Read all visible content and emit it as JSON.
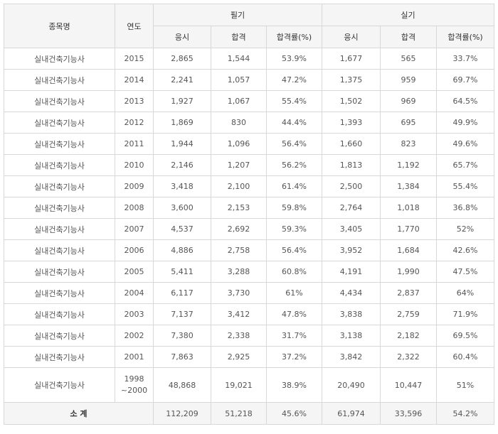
{
  "headers": {
    "name": "종목명",
    "year": "연도",
    "written": "필기",
    "practical": "실기",
    "apply": "응시",
    "pass": "합격",
    "rate": "합격률(%)"
  },
  "rows": [
    {
      "name": "실내건축기능사",
      "year": "2015",
      "w_apply": "2,865",
      "w_pass": "1,544",
      "w_rate": "53.9%",
      "p_apply": "1,677",
      "p_pass": "565",
      "p_rate": "33.7%"
    },
    {
      "name": "실내건축기능사",
      "year": "2014",
      "w_apply": "2,241",
      "w_pass": "1,057",
      "w_rate": "47.2%",
      "p_apply": "1,375",
      "p_pass": "959",
      "p_rate": "69.7%"
    },
    {
      "name": "실내건축기능사",
      "year": "2013",
      "w_apply": "1,927",
      "w_pass": "1,067",
      "w_rate": "55.4%",
      "p_apply": "1,502",
      "p_pass": "969",
      "p_rate": "64.5%"
    },
    {
      "name": "실내건축기능사",
      "year": "2012",
      "w_apply": "1,869",
      "w_pass": "830",
      "w_rate": "44.4%",
      "p_apply": "1,393",
      "p_pass": "695",
      "p_rate": "49.9%"
    },
    {
      "name": "실내건축기능사",
      "year": "2011",
      "w_apply": "1,944",
      "w_pass": "1,096",
      "w_rate": "56.4%",
      "p_apply": "1,660",
      "p_pass": "823",
      "p_rate": "49.6%"
    },
    {
      "name": "실내건축기능사",
      "year": "2010",
      "w_apply": "2,146",
      "w_pass": "1,207",
      "w_rate": "56.2%",
      "p_apply": "1,813",
      "p_pass": "1,192",
      "p_rate": "65.7%"
    },
    {
      "name": "실내건축기능사",
      "year": "2009",
      "w_apply": "3,418",
      "w_pass": "2,100",
      "w_rate": "61.4%",
      "p_apply": "2,500",
      "p_pass": "1,384",
      "p_rate": "55.4%"
    },
    {
      "name": "실내건축기능사",
      "year": "2008",
      "w_apply": "3,600",
      "w_pass": "2,153",
      "w_rate": "59.8%",
      "p_apply": "2,764",
      "p_pass": "1,018",
      "p_rate": "36.8%"
    },
    {
      "name": "실내건축기능사",
      "year": "2007",
      "w_apply": "4,537",
      "w_pass": "2,692",
      "w_rate": "59.3%",
      "p_apply": "3,405",
      "p_pass": "1,770",
      "p_rate": "52%"
    },
    {
      "name": "실내건축기능사",
      "year": "2006",
      "w_apply": "4,886",
      "w_pass": "2,758",
      "w_rate": "56.4%",
      "p_apply": "3,952",
      "p_pass": "1,684",
      "p_rate": "42.6%"
    },
    {
      "name": "실내건축기능사",
      "year": "2005",
      "w_apply": "5,411",
      "w_pass": "3,288",
      "w_rate": "60.8%",
      "p_apply": "4,191",
      "p_pass": "1,990",
      "p_rate": "47.5%"
    },
    {
      "name": "실내건축기능사",
      "year": "2004",
      "w_apply": "6,117",
      "w_pass": "3,730",
      "w_rate": "61%",
      "p_apply": "4,434",
      "p_pass": "2,837",
      "p_rate": "64%"
    },
    {
      "name": "실내건축기능사",
      "year": "2003",
      "w_apply": "7,137",
      "w_pass": "3,412",
      "w_rate": "47.8%",
      "p_apply": "3,838",
      "p_pass": "2,759",
      "p_rate": "71.9%"
    },
    {
      "name": "실내건축기능사",
      "year": "2002",
      "w_apply": "7,380",
      "w_pass": "2,338",
      "w_rate": "31.7%",
      "p_apply": "3,138",
      "p_pass": "2,182",
      "p_rate": "69.5%"
    },
    {
      "name": "실내건축기능사",
      "year": "2001",
      "w_apply": "7,863",
      "w_pass": "2,925",
      "w_rate": "37.2%",
      "p_apply": "3,842",
      "p_pass": "2,322",
      "p_rate": "60.4%"
    },
    {
      "name": "실내건축기능사",
      "year_line1": "1998",
      "year_line2": "~2000",
      "w_apply": "48,868",
      "w_pass": "19,021",
      "w_rate": "38.9%",
      "p_apply": "20,490",
      "p_pass": "10,447",
      "p_rate": "51%"
    }
  ],
  "total": {
    "label": "소 계",
    "w_apply": "112,209",
    "w_pass": "51,218",
    "w_rate": "45.6%",
    "p_apply": "61,974",
    "p_pass": "33,596",
    "p_rate": "54.2%"
  }
}
